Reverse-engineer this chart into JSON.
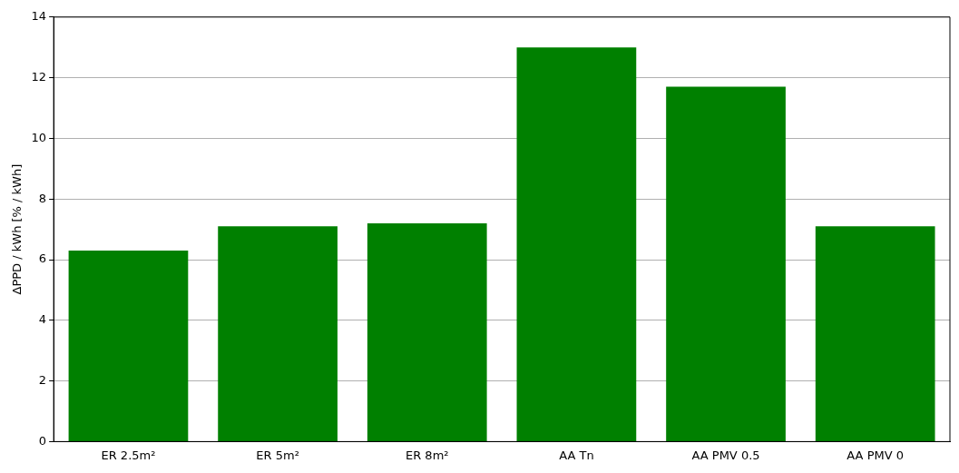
{
  "chart_data": {
    "type": "bar",
    "ylabel": "ΔPPD / kWh [% / kWh]",
    "categories": [
      "ER 2.5m²",
      "ER 5m²",
      "ER 8m²",
      "AA Tn",
      "AA PMV 0.5",
      "AA PMV 0"
    ],
    "values": [
      6.3,
      7.1,
      7.2,
      13.0,
      11.7,
      7.1
    ],
    "color": "#008000",
    "ylim": [
      0,
      14
    ],
    "yticks": [
      0,
      2,
      4,
      6,
      8,
      10,
      12,
      14
    ],
    "grid": "y"
  }
}
